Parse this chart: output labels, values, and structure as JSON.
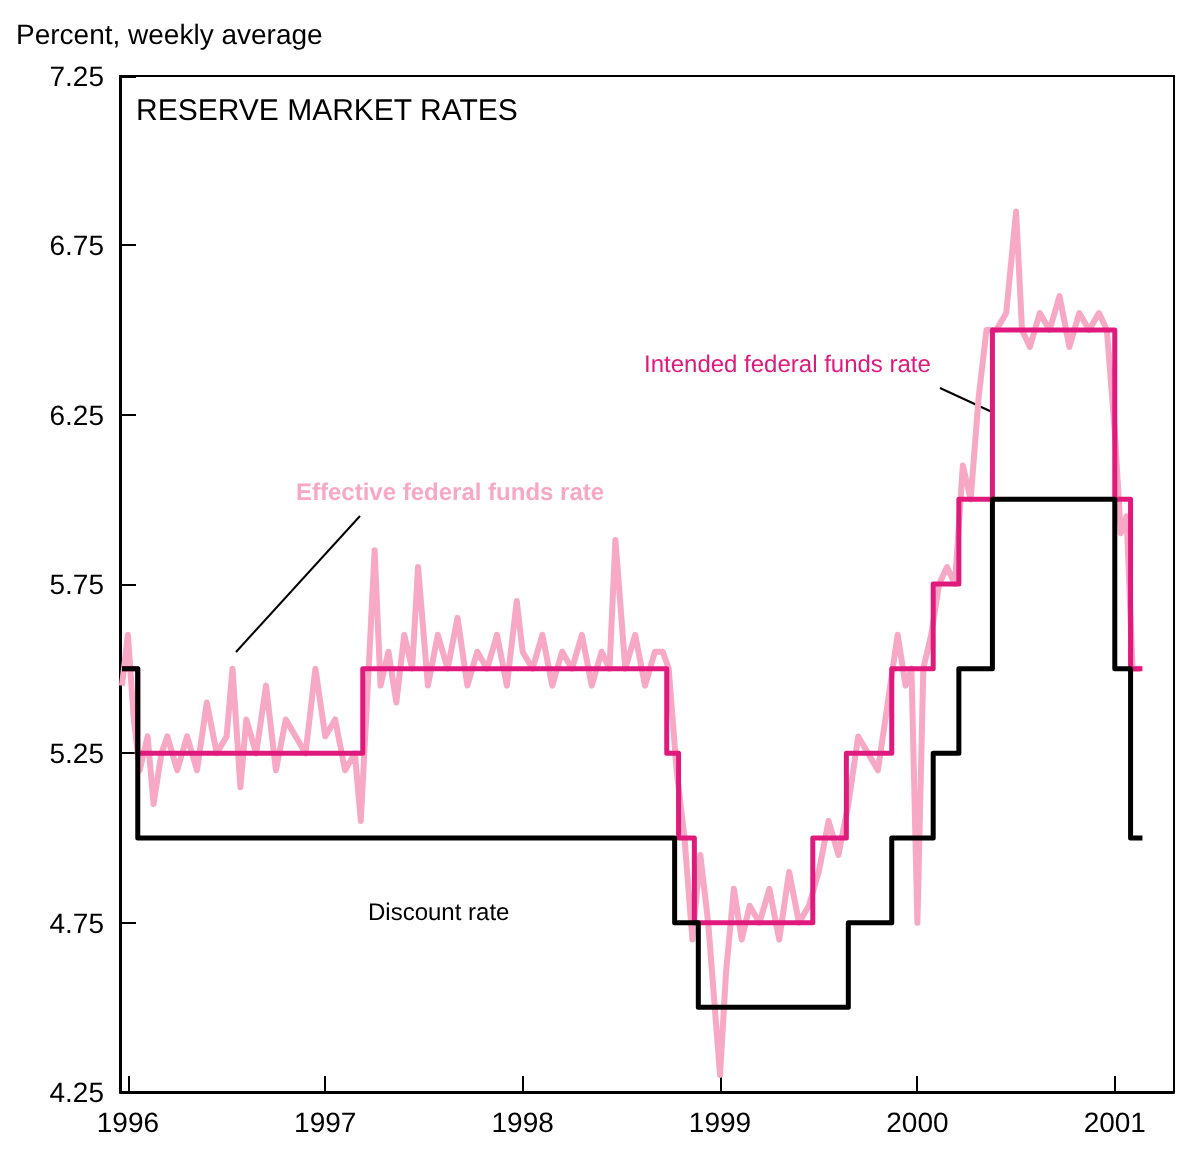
{
  "chart_data": {
    "type": "line",
    "title": "RESERVE MARKET RATES",
    "ylabel": "Percent, weekly average",
    "xlim": [
      1995.96,
      2001.3
    ],
    "xticks": [
      1996,
      1997,
      1998,
      1999,
      2000,
      2001
    ],
    "ylim": [
      4.25,
      7.25
    ],
    "yticks": [
      4.25,
      4.75,
      5.25,
      5.75,
      6.25,
      6.75,
      7.25
    ],
    "grid": false,
    "legend": false,
    "marker": "none",
    "series": [
      {
        "name": "Effective federal funds rate",
        "color": "#f7a8c4",
        "type": "line",
        "x": [
          1995.97,
          1996.0,
          1996.03,
          1996.06,
          1996.1,
          1996.13,
          1996.17,
          1996.2,
          1996.25,
          1996.3,
          1996.35,
          1996.4,
          1996.45,
          1996.5,
          1996.53,
          1996.57,
          1996.6,
          1996.65,
          1996.7,
          1996.75,
          1996.8,
          1996.85,
          1996.9,
          1996.95,
          1997.0,
          1997.05,
          1997.1,
          1997.15,
          1997.18,
          1997.22,
          1997.25,
          1997.28,
          1997.32,
          1997.36,
          1997.4,
          1997.44,
          1997.47,
          1997.52,
          1997.57,
          1997.62,
          1997.67,
          1997.72,
          1997.77,
          1997.82,
          1997.87,
          1997.92,
          1997.97,
          1998.0,
          1998.05,
          1998.1,
          1998.15,
          1998.2,
          1998.25,
          1998.3,
          1998.35,
          1998.4,
          1998.44,
          1998.47,
          1998.52,
          1998.57,
          1998.62,
          1998.67,
          1998.71,
          1998.74,
          1998.78,
          1998.82,
          1998.86,
          1998.9,
          1998.94,
          1999.0,
          1999.03,
          1999.07,
          1999.11,
          1999.15,
          1999.2,
          1999.25,
          1999.3,
          1999.35,
          1999.4,
          1999.45,
          1999.5,
          1999.55,
          1999.6,
          1999.65,
          1999.7,
          1999.75,
          1999.8,
          1999.85,
          1999.9,
          1999.94,
          1999.97,
          2000.0,
          2000.03,
          2000.07,
          2000.11,
          2000.15,
          2000.19,
          2000.23,
          2000.27,
          2000.31,
          2000.35,
          2000.4,
          2000.45,
          2000.5,
          2000.53,
          2000.57,
          2000.62,
          2000.67,
          2000.72,
          2000.77,
          2000.82,
          2000.87,
          2000.92,
          2000.96,
          2001.0,
          2001.03,
          2001.06,
          2001.09,
          2001.13
        ],
        "values": [
          5.45,
          5.6,
          5.35,
          5.2,
          5.3,
          5.1,
          5.25,
          5.3,
          5.2,
          5.3,
          5.2,
          5.4,
          5.25,
          5.3,
          5.5,
          5.15,
          5.35,
          5.25,
          5.45,
          5.2,
          5.35,
          5.3,
          5.25,
          5.5,
          5.3,
          5.35,
          5.2,
          5.25,
          5.05,
          5.5,
          5.85,
          5.45,
          5.55,
          5.4,
          5.6,
          5.5,
          5.8,
          5.45,
          5.6,
          5.5,
          5.65,
          5.45,
          5.55,
          5.5,
          5.6,
          5.45,
          5.7,
          5.55,
          5.5,
          5.6,
          5.45,
          5.55,
          5.5,
          5.6,
          5.45,
          5.55,
          5.5,
          5.88,
          5.5,
          5.6,
          5.45,
          5.55,
          5.55,
          5.5,
          5.2,
          5.0,
          4.7,
          4.95,
          4.75,
          4.3,
          4.6,
          4.85,
          4.7,
          4.8,
          4.75,
          4.85,
          4.7,
          4.9,
          4.75,
          4.8,
          4.9,
          5.05,
          4.95,
          5.1,
          5.3,
          5.25,
          5.2,
          5.4,
          5.6,
          5.45,
          5.5,
          4.75,
          5.5,
          5.6,
          5.75,
          5.8,
          5.75,
          6.1,
          6.0,
          6.3,
          6.5,
          6.5,
          6.55,
          6.85,
          6.5,
          6.45,
          6.55,
          6.5,
          6.6,
          6.45,
          6.55,
          6.5,
          6.55,
          6.5,
          6.2,
          5.9,
          5.95,
          5.5,
          5.5
        ]
      },
      {
        "name": "Intended federal funds rate",
        "color": "#e0197d",
        "type": "step",
        "x": [
          1995.97,
          1996.05,
          1997.19,
          1998.73,
          1998.79,
          1998.87,
          1999.47,
          1999.64,
          1999.87,
          2000.08,
          2000.21,
          2000.38,
          2001.0,
          2001.08,
          2001.14
        ],
        "values": [
          5.5,
          5.25,
          5.5,
          5.25,
          5.0,
          4.75,
          5.0,
          5.25,
          5.5,
          5.75,
          6.0,
          6.5,
          6.0,
          5.5,
          5.5
        ]
      },
      {
        "name": "Discount rate",
        "color": "#000000",
        "type": "step",
        "x": [
          1995.97,
          1996.05,
          1998.77,
          1998.89,
          1999.65,
          1999.87,
          2000.08,
          2000.21,
          2000.38,
          2001.0,
          2001.08,
          2001.14
        ],
        "values": [
          5.5,
          5.0,
          4.75,
          4.5,
          4.75,
          5.0,
          5.25,
          5.5,
          6.0,
          5.5,
          5.0,
          5.0
        ]
      }
    ]
  }
}
